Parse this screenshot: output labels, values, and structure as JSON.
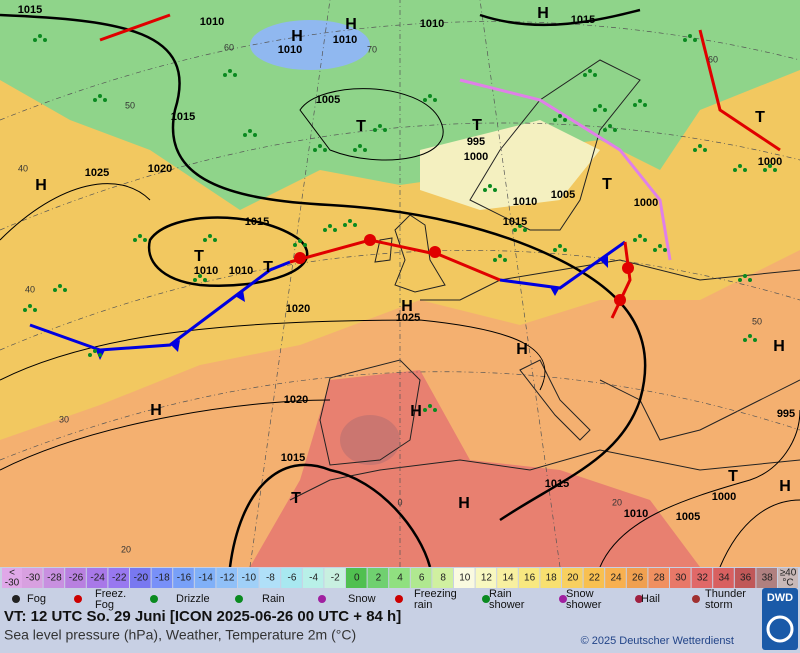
{
  "map": {
    "pressure_centers": [
      "H",
      "H",
      "H",
      "H",
      "T",
      "T",
      "T",
      "T",
      "H",
      "H",
      "H",
      "H",
      "T",
      "H",
      "T",
      "H",
      "H",
      "T",
      "T"
    ],
    "isobar_labels": [
      1015,
      1010,
      1010,
      1010,
      1010,
      1015,
      1005,
      1015,
      995,
      1000,
      1025,
      1020,
      1015,
      1005,
      1010,
      1015,
      1000,
      1000,
      1010,
      1010,
      1020,
      1025,
      1020,
      1015,
      1015,
      1010,
      1005,
      1000,
      995
    ],
    "grid_labels": [
      60,
      50,
      40,
      40,
      30,
      20,
      70,
      60,
      50,
      0,
      20
    ]
  },
  "legend": {
    "low_end": [
      "<",
      "-30"
    ],
    "temperature_values": [
      -30,
      -28,
      -26,
      -24,
      -22,
      -20,
      -18,
      -16,
      -14,
      -12,
      -10,
      -8,
      -6,
      -4,
      -2,
      0,
      2,
      4,
      6,
      8,
      10,
      12,
      14,
      16,
      18,
      20,
      22,
      24,
      26,
      28,
      30,
      32,
      34,
      36,
      38
    ],
    "temperature_colors": [
      "#d8a0e0",
      "#c890e0",
      "#b880e0",
      "#a878e8",
      "#9878f0",
      "#7878f0",
      "#7890f8",
      "#78a0f8",
      "#80b0f8",
      "#90c0f8",
      "#a0d0f8",
      "#b0e0f8",
      "#a8e8f0",
      "#b8f0e8",
      "#c8f0e0",
      "#50c050",
      "#70d070",
      "#90e080",
      "#b0e890",
      "#d0f0a0",
      "#fafae0",
      "#f8f8c0",
      "#f8f0a0",
      "#f8e880",
      "#f8e070",
      "#f8d060",
      "#f8c050",
      "#f8b050",
      "#f0a050",
      "#f09060",
      "#e87868",
      "#e06868",
      "#d86060",
      "#c05858",
      "#b08080"
    ],
    "high_end": [
      "≥40",
      "°C"
    ],
    "weather_items": [
      [
        "Fog"
      ],
      [
        "Freez.",
        "Fog"
      ],
      [
        "Drizzle"
      ],
      [
        "Rain"
      ],
      [
        "Snow"
      ],
      [
        "Freezing",
        "rain"
      ],
      [
        "Rain",
        "shower"
      ],
      [
        "Snow",
        "shower"
      ],
      [
        "Hail"
      ],
      [
        "Thunder",
        "storm"
      ]
    ],
    "logo": "DWD"
  },
  "footer": {
    "valid_time": "VT: 12 UTC So.  29 Juni [ICON 2025-06-26  00 UTC + 84 h]",
    "description": "Sea level pressure (hPa), Weather, Temperature 2m (°C)",
    "copyright": "© 2025 Deutscher Wetterdienst"
  }
}
